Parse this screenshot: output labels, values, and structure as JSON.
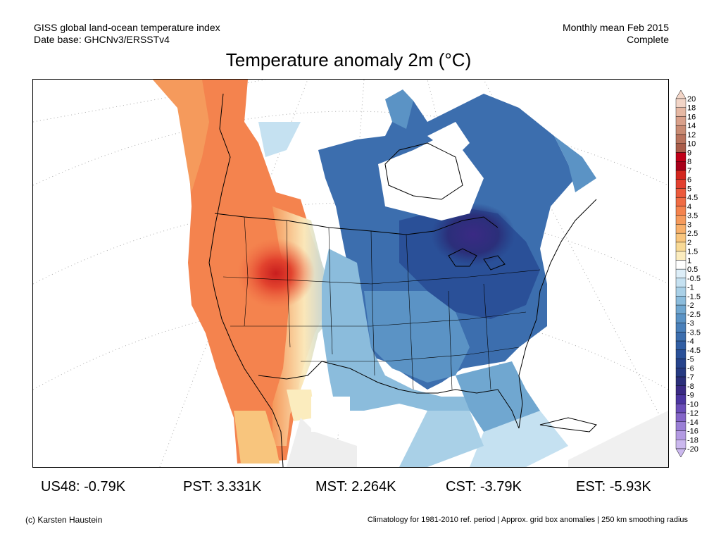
{
  "header": {
    "left_line1": "GISS global land-ocean temperature index",
    "left_line2": "Date base: GHCNv3/ERSSTv4",
    "right_line1": "Monthly mean Feb 2015",
    "right_line2": "Complete"
  },
  "title": "Temperature anomaly 2m (°C)",
  "map": {
    "region": "North America",
    "projection_graticule": true
  },
  "legend": {
    "labels": [
      "20",
      "18",
      "16",
      "14",
      "12",
      "10",
      "9",
      "8",
      "7",
      "6",
      "5",
      "4.5",
      "4",
      "3.5",
      "3",
      "2.5",
      "2",
      "1.5",
      "1",
      "0.5",
      "-0.5",
      "-1",
      "-1.5",
      "-2",
      "-2.5",
      "-3",
      "-3.5",
      "-4",
      "-4.5",
      "-5",
      "-6",
      "-7",
      "-8",
      "-9",
      "-10",
      "-12",
      "-14",
      "-16",
      "-18",
      "-20"
    ],
    "colors": [
      "#f2d5c7",
      "#e6b8a3",
      "#d9a08a",
      "#c98b73",
      "#b9735d",
      "#a95d4a",
      "#c00018",
      "#a8001a",
      "#d3261e",
      "#e24030",
      "#ec5a3c",
      "#f06c44",
      "#f4834e",
      "#f59a5c",
      "#f7b06b",
      "#f8c57d",
      "#f8d995",
      "#fbecbe",
      "#ffffff",
      "#ddeef8",
      "#c5e1f1",
      "#a9d0e7",
      "#8bbcdc",
      "#70a7d0",
      "#5b93c5",
      "#4a80ba",
      "#3c6eae",
      "#315ea3",
      "#2a5098",
      "#26438c",
      "#263a82",
      "#2b2f7a",
      "#3a2a84",
      "#4b35a0",
      "#6a4db8",
      "#8465c8",
      "#9a7fd6",
      "#b39ae2",
      "#cbb8ee"
    ],
    "top_arrow_color": "#f2d5c7",
    "bottom_arrow_color": "#cbb8ee"
  },
  "stats": [
    {
      "label": "US48: -0.79K"
    },
    {
      "label": "PST: 3.331K"
    },
    {
      "label": "MST: 2.264K"
    },
    {
      "label": "CST: -3.79K"
    },
    {
      "label": "EST: -5.93K"
    }
  ],
  "footer": {
    "credit": "(c) Karsten Haustein",
    "note": "Climatology for 1981-2010 ref. period | Approx. grid box anomalies | 250 km smoothing radius"
  }
}
